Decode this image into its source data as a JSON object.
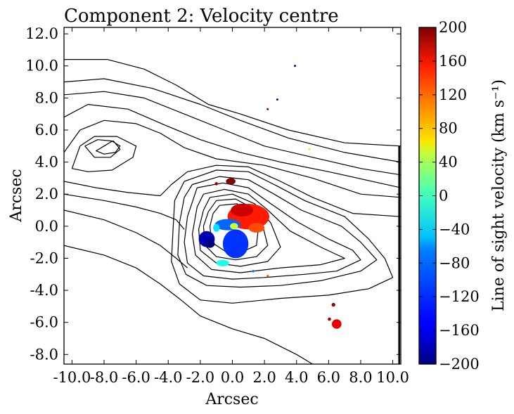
{
  "chart_data": {
    "type": "heatmap",
    "title": "Component 2: Velocity centre",
    "xlabel": "Arcsec",
    "ylabel": "Arcsec",
    "xlim": [
      -10.5,
      10.5
    ],
    "ylim": [
      -8.6,
      12.4
    ],
    "x_ticks": [
      -10.0,
      -8.0,
      -6.0,
      -4.0,
      -2.0,
      0.0,
      2.0,
      4.0,
      6.0,
      8.0,
      10.0
    ],
    "x_tick_labels": [
      "-10.0",
      "-8.0",
      "-6.0",
      "-4.0",
      "-2.0",
      "0.0",
      "2.0",
      "4.0",
      "6.0",
      "8.0",
      "10.0"
    ],
    "y_ticks": [
      -8.0,
      -6.0,
      -4.0,
      -2.0,
      0.0,
      2.0,
      4.0,
      6.0,
      8.0,
      10.0,
      12.0
    ],
    "y_tick_labels": [
      "-8.0",
      "-6.0",
      "-4.0",
      "-2.0",
      "0.0",
      "2.0",
      "4.0",
      "6.0",
      "8.0",
      "10.0",
      "12.0"
    ],
    "colorbar": {
      "label": "Line of sight velocity (km s⁻¹)",
      "vmin": -200,
      "vmax": 200,
      "ticks": [
        200,
        160,
        120,
        80,
        40,
        0,
        -40,
        -80,
        -120,
        -160,
        -200
      ],
      "tick_labels": [
        "200",
        "160",
        "120",
        "80",
        "40",
        "0",
        "−40",
        "−80",
        "−120",
        "−160",
        "−200"
      ],
      "colormap": "jet"
    },
    "velocity_patches": [
      {
        "name": "red-lobe",
        "x": 1.0,
        "y": 0.6,
        "rx": 1.3,
        "ry": 0.8,
        "v": 140
      },
      {
        "name": "red-core",
        "x": 0.6,
        "y": 1.0,
        "rx": 0.7,
        "ry": 0.4,
        "v": 170
      },
      {
        "name": "orange-tail",
        "x": 1.5,
        "y": -0.1,
        "rx": 0.5,
        "ry": 0.3,
        "v": 120
      },
      {
        "name": "blue-blob",
        "x": 0.2,
        "y": -1.1,
        "rx": 0.8,
        "ry": 0.9,
        "v": -130
      },
      {
        "name": "blue-upper",
        "x": -0.3,
        "y": 0.1,
        "rx": 0.8,
        "ry": 0.35,
        "v": -110
      },
      {
        "name": "navy-left",
        "x": -1.6,
        "y": -0.8,
        "rx": 0.5,
        "ry": 0.5,
        "v": -180
      },
      {
        "name": "navy-core",
        "x": -1.4,
        "y": -1.1,
        "rx": 0.3,
        "ry": 0.25,
        "v": -200
      },
      {
        "name": "green-lower",
        "x": -0.6,
        "y": -2.3,
        "rx": 0.4,
        "ry": 0.2,
        "v": -40
      },
      {
        "name": "cyan-mid",
        "x": -1.0,
        "y": -0.1,
        "rx": 0.2,
        "ry": 0.25,
        "v": -60
      },
      {
        "name": "yellow-mid",
        "x": 0.1,
        "y": 0.0,
        "rx": 0.25,
        "ry": 0.2,
        "v": 30
      },
      {
        "name": "darkred-top",
        "x": -0.1,
        "y": 2.8,
        "rx": 0.3,
        "ry": 0.2,
        "v": 200
      },
      {
        "name": "darkred-top2",
        "x": -1.0,
        "y": 2.65,
        "rx": 0.1,
        "ry": 0.1,
        "v": 190
      },
      {
        "name": "red-bottom-right",
        "x": 6.5,
        "y": -6.1,
        "rx": 0.3,
        "ry": 0.3,
        "v": 160
      },
      {
        "name": "darkred-br1",
        "x": 6.3,
        "y": -4.9,
        "rx": 0.12,
        "ry": 0.12,
        "v": 190
      },
      {
        "name": "darkred-br2",
        "x": 6.05,
        "y": -5.8,
        "rx": 0.1,
        "ry": 0.1,
        "v": 190
      },
      {
        "name": "speck-top",
        "x": 3.9,
        "y": 10.0,
        "rx": 0.06,
        "ry": 0.06,
        "v": -200
      },
      {
        "name": "speck-2",
        "x": 2.8,
        "y": 7.9,
        "rx": 0.06,
        "ry": 0.06,
        "v": -200
      },
      {
        "name": "speck-3",
        "x": 2.2,
        "y": 7.3,
        "rx": 0.06,
        "ry": 0.06,
        "v": 200
      },
      {
        "name": "speck-4",
        "x": 4.8,
        "y": 4.8,
        "rx": 0.06,
        "ry": 0.06,
        "v": 60
      },
      {
        "name": "speck-5",
        "x": 1.3,
        "y": -2.8,
        "rx": 0.06,
        "ry": 0.08,
        "v": -100
      },
      {
        "name": "speck-6",
        "x": 2.2,
        "y": -3.1,
        "rx": 0.06,
        "ry": 0.06,
        "v": 120
      }
    ],
    "contours": [
      [
        [
          -10.5,
          10.4
        ],
        [
          -7.8,
          10.4
        ],
        [
          -5.5,
          9.8
        ],
        [
          -3.5,
          8.8
        ],
        [
          -1.5,
          7.6
        ],
        [
          0.5,
          7.0
        ],
        [
          3.5,
          6.0
        ],
        [
          7.0,
          5.2
        ],
        [
          10.5,
          5.0
        ]
      ],
      [
        [
          -10.5,
          9.0
        ],
        [
          -8.0,
          9.2
        ],
        [
          -5.0,
          8.6
        ],
        [
          -2.0,
          7.6
        ],
        [
          0.5,
          6.6
        ],
        [
          3.5,
          5.5
        ],
        [
          7.0,
          4.6
        ],
        [
          10.5,
          4.0
        ]
      ],
      [
        [
          -10.5,
          8.2
        ],
        [
          -8.0,
          8.4
        ],
        [
          -5.5,
          8.0
        ],
        [
          -3.0,
          7.0
        ],
        [
          -0.5,
          6.0
        ],
        [
          2.0,
          5.0
        ],
        [
          5.0,
          4.3
        ],
        [
          8.0,
          3.6
        ],
        [
          10.5,
          3.2
        ]
      ],
      [
        [
          -10.5,
          6.8
        ],
        [
          -9.0,
          7.6
        ],
        [
          -6.5,
          7.3
        ],
        [
          -4.2,
          6.3
        ],
        [
          -2.0,
          5.4
        ],
        [
          0.5,
          4.6
        ],
        [
          3.0,
          4.0
        ],
        [
          6.0,
          3.4
        ],
        [
          10.5,
          2.4
        ]
      ],
      [
        [
          -10.5,
          4.6
        ],
        [
          -9.5,
          6.0
        ],
        [
          -8.0,
          6.6
        ],
        [
          -6.0,
          6.4
        ],
        [
          -4.5,
          5.8
        ],
        [
          -3.0,
          4.9
        ],
        [
          -1.0,
          4.2
        ],
        [
          2.0,
          3.8
        ],
        [
          5.0,
          3.0
        ],
        [
          8.0,
          2.0
        ],
        [
          10.5,
          1.8
        ]
      ],
      [
        [
          -9.5,
          5.0
        ],
        [
          -8.6,
          5.6
        ],
        [
          -7.2,
          5.6
        ],
        [
          -6.0,
          5.0
        ],
        [
          -6.2,
          4.3
        ],
        [
          -7.5,
          3.5
        ],
        [
          -9.0,
          3.4
        ],
        [
          -10.0,
          3.6
        ],
        [
          -9.5,
          5.0
        ]
      ],
      [
        [
          -8.0,
          5.0
        ],
        [
          -7.5,
          5.3
        ],
        [
          -7.0,
          5.0
        ],
        [
          -7.3,
          4.6
        ],
        [
          -8.0,
          4.5
        ],
        [
          -8.5,
          4.7
        ],
        [
          -8.0,
          5.0
        ]
      ],
      [
        [
          -9.2,
          5.0
        ],
        [
          -8.4,
          5.4
        ],
        [
          -7.4,
          5.3
        ],
        [
          -7.0,
          4.8
        ],
        [
          -7.6,
          4.3
        ],
        [
          -8.6,
          4.3
        ],
        [
          -9.2,
          5.0
        ]
      ],
      [
        [
          -10.5,
          2.8
        ],
        [
          -8.5,
          2.4
        ],
        [
          -6.5,
          2.1
        ],
        [
          -4.5,
          1.9
        ],
        [
          -3.8,
          2.6
        ],
        [
          -2.8,
          3.4
        ],
        [
          -1.0,
          3.8
        ],
        [
          1.0,
          3.7
        ],
        [
          3.0,
          2.8
        ],
        [
          5.0,
          1.8
        ],
        [
          7.5,
          0.8
        ],
        [
          10.5,
          0.6
        ]
      ],
      [
        [
          -10.5,
          2.0
        ],
        [
          -8.0,
          1.6
        ],
        [
          -6.0,
          1.2
        ],
        [
          -4.5,
          0.8
        ],
        [
          -3.5,
          0.4
        ],
        [
          -3.0,
          -0.2
        ]
      ],
      [
        [
          -10.5,
          1.0
        ],
        [
          -8.0,
          0.4
        ],
        [
          -6.0,
          -0.4
        ],
        [
          -4.5,
          -1.2
        ],
        [
          -3.5,
          -2.0
        ],
        [
          -2.8,
          -2.6
        ]
      ],
      [
        [
          -10.5,
          -1.2
        ],
        [
          -8.0,
          -1.8
        ],
        [
          -6.0,
          -2.6
        ],
        [
          -4.5,
          -3.6
        ],
        [
          -3.2,
          -4.6
        ],
        [
          -2.0,
          -5.6
        ],
        [
          0.0,
          -6.4
        ],
        [
          2.0,
          -7.0
        ],
        [
          4.0,
          -8.0
        ],
        [
          5.0,
          -8.6
        ]
      ],
      [
        [
          -3.0,
          2.8
        ],
        [
          -1.0,
          3.5
        ],
        [
          1.0,
          3.4
        ],
        [
          2.8,
          2.5
        ],
        [
          4.5,
          1.6
        ],
        [
          7.0,
          0.6
        ],
        [
          8.5,
          -0.8
        ],
        [
          9.5,
          -2.0
        ],
        [
          10.0,
          -3.2
        ],
        [
          8.5,
          -3.9
        ],
        [
          6.0,
          -4.3
        ],
        [
          3.0,
          -4.5
        ],
        [
          0.0,
          -4.8
        ],
        [
          -2.0,
          -4.6
        ],
        [
          -3.3,
          -3.6
        ],
        [
          -3.8,
          -2.2
        ],
        [
          -3.7,
          -0.2
        ],
        [
          -3.6,
          1.6
        ],
        [
          -3.0,
          2.8
        ]
      ],
      [
        [
          -2.5,
          2.6
        ],
        [
          -0.8,
          3.1
        ],
        [
          1.0,
          2.9
        ],
        [
          2.6,
          2.0
        ],
        [
          4.3,
          1.0
        ],
        [
          6.8,
          0.0
        ],
        [
          8.0,
          -1.0
        ],
        [
          9.0,
          -2.1
        ],
        [
          8.0,
          -2.8
        ],
        [
          5.5,
          -3.4
        ],
        [
          3.0,
          -3.7
        ],
        [
          0.5,
          -3.8
        ],
        [
          -1.6,
          -3.7
        ],
        [
          -2.9,
          -3.0
        ],
        [
          -3.4,
          -1.8
        ],
        [
          -3.3,
          0.2
        ],
        [
          -3.0,
          1.8
        ],
        [
          -2.5,
          2.6
        ]
      ],
      [
        [
          -2.2,
          2.4
        ],
        [
          -0.6,
          2.7
        ],
        [
          1.0,
          2.4
        ],
        [
          2.4,
          1.4
        ],
        [
          4.0,
          0.3
        ],
        [
          6.0,
          -0.8
        ],
        [
          7.5,
          -1.5
        ],
        [
          8.0,
          -2.1
        ],
        [
          6.5,
          -2.8
        ],
        [
          4.5,
          -3.0
        ],
        [
          2.0,
          -3.2
        ],
        [
          0.0,
          -3.3
        ],
        [
          -1.8,
          -3.1
        ],
        [
          -2.8,
          -2.3
        ],
        [
          -3.0,
          -1.0
        ],
        [
          -2.8,
          0.6
        ],
        [
          -2.2,
          2.4
        ]
      ],
      [
        [
          -1.8,
          2.0
        ],
        [
          -0.5,
          2.3
        ],
        [
          1.0,
          2.0
        ],
        [
          2.1,
          1.1
        ],
        [
          3.6,
          -0.3
        ],
        [
          5.5,
          -1.3
        ],
        [
          7.0,
          -2.0
        ],
        [
          5.5,
          -2.4
        ],
        [
          3.0,
          -2.6
        ],
        [
          0.5,
          -2.9
        ],
        [
          -1.3,
          -2.7
        ],
        [
          -2.3,
          -1.8
        ],
        [
          -2.5,
          -0.5
        ],
        [
          -2.2,
          1.2
        ],
        [
          -1.8,
          2.0
        ]
      ],
      [
        [
          -1.4,
          1.8
        ],
        [
          0.0,
          2.0
        ],
        [
          1.4,
          1.4
        ],
        [
          2.4,
          0.2
        ],
        [
          3.0,
          -1.3
        ],
        [
          2.2,
          -2.2
        ],
        [
          0.5,
          -2.5
        ],
        [
          -1.0,
          -2.3
        ],
        [
          -2.0,
          -1.5
        ],
        [
          -2.1,
          -0.2
        ],
        [
          -1.8,
          1.0
        ],
        [
          -1.4,
          1.8
        ]
      ],
      [
        [
          -1.0,
          1.6
        ],
        [
          0.2,
          1.7
        ],
        [
          1.3,
          1.1
        ],
        [
          1.9,
          0.0
        ],
        [
          2.2,
          -1.2
        ],
        [
          1.5,
          -1.9
        ],
        [
          0.2,
          -2.1
        ],
        [
          -1.0,
          -1.9
        ],
        [
          -1.7,
          -1.2
        ],
        [
          -1.8,
          0.0
        ],
        [
          -1.5,
          0.9
        ],
        [
          -1.0,
          1.6
        ]
      ],
      [
        [
          -0.8,
          1.3
        ],
        [
          0.3,
          1.4
        ],
        [
          1.1,
          0.8
        ],
        [
          1.6,
          -0.3
        ],
        [
          1.5,
          -1.2
        ],
        [
          0.6,
          -1.6
        ],
        [
          -0.4,
          -1.6
        ],
        [
          -1.3,
          -1.0
        ],
        [
          -1.4,
          0.0
        ],
        [
          -1.2,
          0.8
        ],
        [
          -0.8,
          1.3
        ]
      ],
      [
        [
          10.4,
          5.0
        ],
        [
          10.4,
          -8.6
        ]
      ]
    ]
  }
}
